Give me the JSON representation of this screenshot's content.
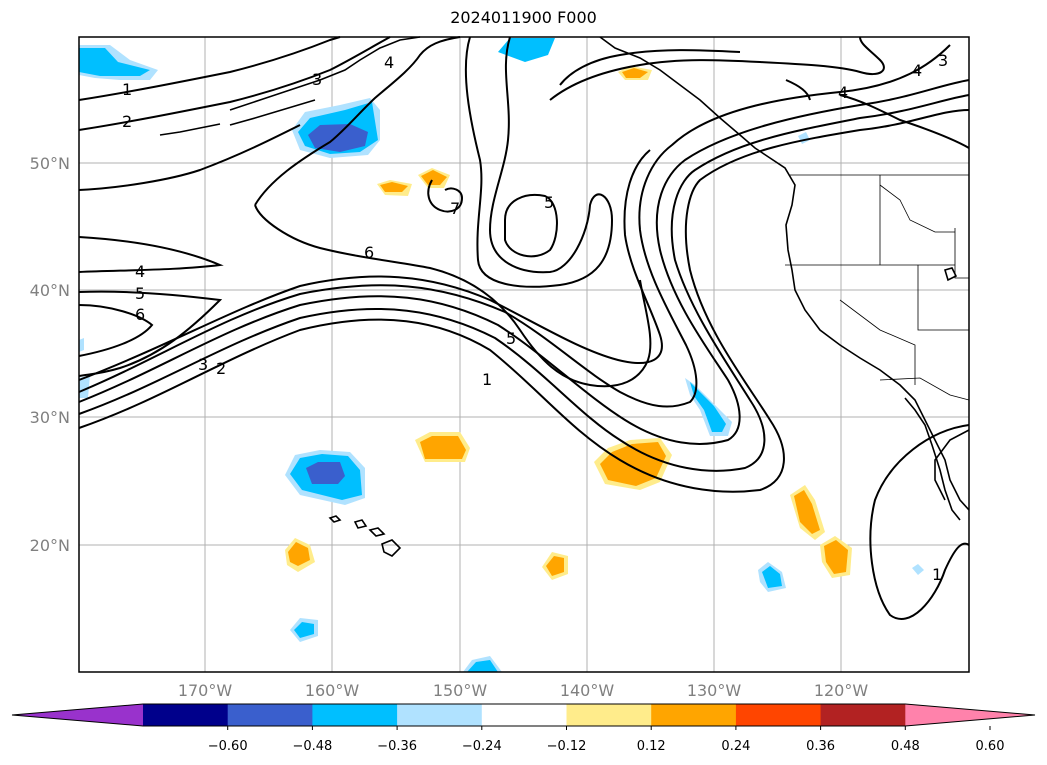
{
  "title": "2024011900 F000",
  "map": {
    "lat_labels": [
      "50°N",
      "40°N",
      "30°N",
      "20°N"
    ],
    "lon_labels": [
      "170°W",
      "160°W",
      "150°W",
      "140°W",
      "130°W",
      "120°W"
    ],
    "contour_labels": [
      "1",
      "2",
      "3",
      "4",
      "5",
      "6",
      "7"
    ]
  },
  "colorbar": {
    "ticks": [
      "−0.60",
      "−0.48",
      "−0.36",
      "−0.24",
      "−0.12",
      "0.12",
      "0.24",
      "0.36",
      "0.48",
      "0.60"
    ],
    "colors": [
      "#9932cc",
      "#00008b",
      "#3a5fcd",
      "#00bfff",
      "#b0e2ff",
      "#ffffff",
      "#ffec8b",
      "#ffa500",
      "#ff4500",
      "#b22222",
      "#ff82ab"
    ]
  }
}
